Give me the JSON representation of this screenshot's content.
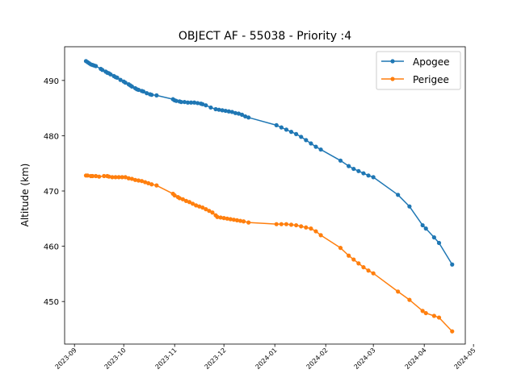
{
  "chart_data": {
    "type": "line",
    "title": "OBJECT AF - 55038 - Priority :4",
    "xlabel": "",
    "ylabel": "Altitude (km)",
    "x_ticks": [
      "2023-09",
      "2023-10",
      "2023-11",
      "2023-12",
      "2024-01",
      "2024-02",
      "2024-03",
      "2024-04",
      "2024-05"
    ],
    "x_tick_dates": [
      "2023-09-01",
      "2023-10-01",
      "2023-11-01",
      "2023-12-01",
      "2024-01-01",
      "2024-02-01",
      "2024-03-01",
      "2024-04-01",
      "2024-05-01"
    ],
    "xlim": [
      "2023-08-26",
      "2024-04-26"
    ],
    "y_ticks": [
      450,
      460,
      470,
      480,
      490
    ],
    "ylim": [
      442.3,
      496.1
    ],
    "grid": false,
    "legend_position": "top-right",
    "series": [
      {
        "name": "Apogee",
        "color": "#1f77b4",
        "points": [
          [
            "2023-09-08",
            493.5
          ],
          [
            "2023-09-09",
            493.3
          ],
          [
            "2023-09-10",
            493.1
          ],
          [
            "2023-09-11",
            492.9
          ],
          [
            "2023-09-12",
            492.8
          ],
          [
            "2023-09-13",
            492.7
          ],
          [
            "2023-09-14",
            492.6
          ],
          [
            "2023-09-17",
            492.1
          ],
          [
            "2023-09-18",
            491.9
          ],
          [
            "2023-09-20",
            491.6
          ],
          [
            "2023-09-21",
            491.4
          ],
          [
            "2023-09-22",
            491.3
          ],
          [
            "2023-09-23",
            491.1
          ],
          [
            "2023-09-25",
            490.8
          ],
          [
            "2023-09-26",
            490.6
          ],
          [
            "2023-09-27",
            490.5
          ],
          [
            "2023-09-29",
            490.1
          ],
          [
            "2023-10-01",
            489.8
          ],
          [
            "2023-10-02",
            489.6
          ],
          [
            "2023-10-04",
            489.3
          ],
          [
            "2023-10-05",
            489.1
          ],
          [
            "2023-10-06",
            488.9
          ],
          [
            "2023-10-08",
            488.6
          ],
          [
            "2023-10-09",
            488.4
          ],
          [
            "2023-10-10",
            488.3
          ],
          [
            "2023-10-12",
            488.1
          ],
          [
            "2023-10-13",
            488.0
          ],
          [
            "2023-10-15",
            487.7
          ],
          [
            "2023-10-17",
            487.5
          ],
          [
            "2023-10-18",
            487.4
          ],
          [
            "2023-10-21",
            487.3
          ],
          [
            "2023-10-31",
            486.6
          ],
          [
            "2023-11-01",
            486.4
          ],
          [
            "2023-11-02",
            486.3
          ],
          [
            "2023-11-04",
            486.2
          ],
          [
            "2023-11-05",
            486.1
          ],
          [
            "2023-11-07",
            486.1
          ],
          [
            "2023-11-09",
            486.0
          ],
          [
            "2023-11-11",
            486.0
          ],
          [
            "2023-11-13",
            486.0
          ],
          [
            "2023-11-15",
            485.9
          ],
          [
            "2023-11-17",
            485.8
          ],
          [
            "2023-11-18",
            485.7
          ],
          [
            "2023-11-20",
            485.5
          ],
          [
            "2023-11-23",
            485.1
          ],
          [
            "2023-11-26",
            484.8
          ],
          [
            "2023-11-28",
            484.7
          ],
          [
            "2023-11-30",
            484.6
          ],
          [
            "2023-12-02",
            484.5
          ],
          [
            "2023-12-04",
            484.4
          ],
          [
            "2023-12-06",
            484.3
          ],
          [
            "2023-12-08",
            484.1
          ],
          [
            "2023-12-10",
            484.0
          ],
          [
            "2023-12-12",
            483.8
          ],
          [
            "2023-12-14",
            483.5
          ],
          [
            "2023-12-16",
            483.3
          ],
          [
            "2024-01-02",
            481.9
          ],
          [
            "2024-01-05",
            481.5
          ],
          [
            "2024-01-08",
            481.1
          ],
          [
            "2024-01-11",
            480.7
          ],
          [
            "2024-01-14",
            480.3
          ],
          [
            "2024-01-17",
            479.8
          ],
          [
            "2024-01-20",
            479.2
          ],
          [
            "2024-01-23",
            478.6
          ],
          [
            "2024-01-26",
            478.0
          ],
          [
            "2024-01-29",
            477.5
          ],
          [
            "2024-02-10",
            475.5
          ],
          [
            "2024-02-15",
            474.5
          ],
          [
            "2024-02-18",
            474.0
          ],
          [
            "2024-02-21",
            473.6
          ],
          [
            "2024-02-24",
            473.2
          ],
          [
            "2024-02-27",
            472.8
          ],
          [
            "2024-03-01",
            472.5
          ],
          [
            "2024-03-16",
            469.3
          ],
          [
            "2024-03-23",
            467.2
          ],
          [
            "2024-03-31",
            463.8
          ],
          [
            "2024-04-02",
            463.2
          ],
          [
            "2024-04-07",
            461.6
          ],
          [
            "2024-04-10",
            460.6
          ],
          [
            "2024-04-18",
            456.7
          ]
        ]
      },
      {
        "name": "Perigee",
        "color": "#ff7f0e",
        "points": [
          [
            "2023-09-08",
            472.8
          ],
          [
            "2023-09-09",
            472.8
          ],
          [
            "2023-09-11",
            472.7
          ],
          [
            "2023-09-12",
            472.7
          ],
          [
            "2023-09-14",
            472.7
          ],
          [
            "2023-09-16",
            472.6
          ],
          [
            "2023-09-19",
            472.7
          ],
          [
            "2023-09-21",
            472.7
          ],
          [
            "2023-09-22",
            472.6
          ],
          [
            "2023-09-24",
            472.5
          ],
          [
            "2023-09-26",
            472.5
          ],
          [
            "2023-09-28",
            472.5
          ],
          [
            "2023-09-30",
            472.5
          ],
          [
            "2023-10-02",
            472.5
          ],
          [
            "2023-10-04",
            472.3
          ],
          [
            "2023-10-06",
            472.2
          ],
          [
            "2023-10-08",
            472.0
          ],
          [
            "2023-10-10",
            471.9
          ],
          [
            "2023-10-12",
            471.8
          ],
          [
            "2023-10-14",
            471.6
          ],
          [
            "2023-10-16",
            471.4
          ],
          [
            "2023-10-18",
            471.2
          ],
          [
            "2023-10-21",
            471.0
          ],
          [
            "2023-10-31",
            469.5
          ],
          [
            "2023-11-01",
            469.2
          ],
          [
            "2023-11-03",
            468.9
          ],
          [
            "2023-11-04",
            468.7
          ],
          [
            "2023-11-06",
            468.5
          ],
          [
            "2023-11-08",
            468.2
          ],
          [
            "2023-11-10",
            468.0
          ],
          [
            "2023-11-12",
            467.7
          ],
          [
            "2023-11-14",
            467.4
          ],
          [
            "2023-11-16",
            467.2
          ],
          [
            "2023-11-18",
            467.0
          ],
          [
            "2023-11-20",
            466.7
          ],
          [
            "2023-11-22",
            466.4
          ],
          [
            "2023-11-24",
            466.1
          ],
          [
            "2023-11-26",
            465.6
          ],
          [
            "2023-11-27",
            465.3
          ],
          [
            "2023-11-29",
            465.2
          ],
          [
            "2023-12-01",
            465.1
          ],
          [
            "2023-12-03",
            465.0
          ],
          [
            "2023-12-05",
            464.9
          ],
          [
            "2023-12-07",
            464.8
          ],
          [
            "2023-12-09",
            464.7
          ],
          [
            "2023-12-11",
            464.6
          ],
          [
            "2023-12-13",
            464.5
          ],
          [
            "2023-12-16",
            464.3
          ],
          [
            "2024-01-02",
            464.0
          ],
          [
            "2024-01-05",
            464.0
          ],
          [
            "2024-01-08",
            464.0
          ],
          [
            "2024-01-11",
            463.9
          ],
          [
            "2024-01-14",
            463.8
          ],
          [
            "2024-01-17",
            463.6
          ],
          [
            "2024-01-20",
            463.4
          ],
          [
            "2024-01-23",
            463.2
          ],
          [
            "2024-01-26",
            462.7
          ],
          [
            "2024-01-29",
            462.0
          ],
          [
            "2024-02-10",
            459.7
          ],
          [
            "2024-02-15",
            458.3
          ],
          [
            "2024-02-18",
            457.6
          ],
          [
            "2024-02-21",
            456.9
          ],
          [
            "2024-02-24",
            456.2
          ],
          [
            "2024-02-27",
            455.6
          ],
          [
            "2024-03-01",
            455.1
          ],
          [
            "2024-03-16",
            451.8
          ],
          [
            "2024-03-23",
            450.3
          ],
          [
            "2024-03-31",
            448.3
          ],
          [
            "2024-04-02",
            447.9
          ],
          [
            "2024-04-07",
            447.4
          ],
          [
            "2024-04-10",
            447.1
          ],
          [
            "2024-04-18",
            444.6
          ]
        ]
      }
    ]
  }
}
